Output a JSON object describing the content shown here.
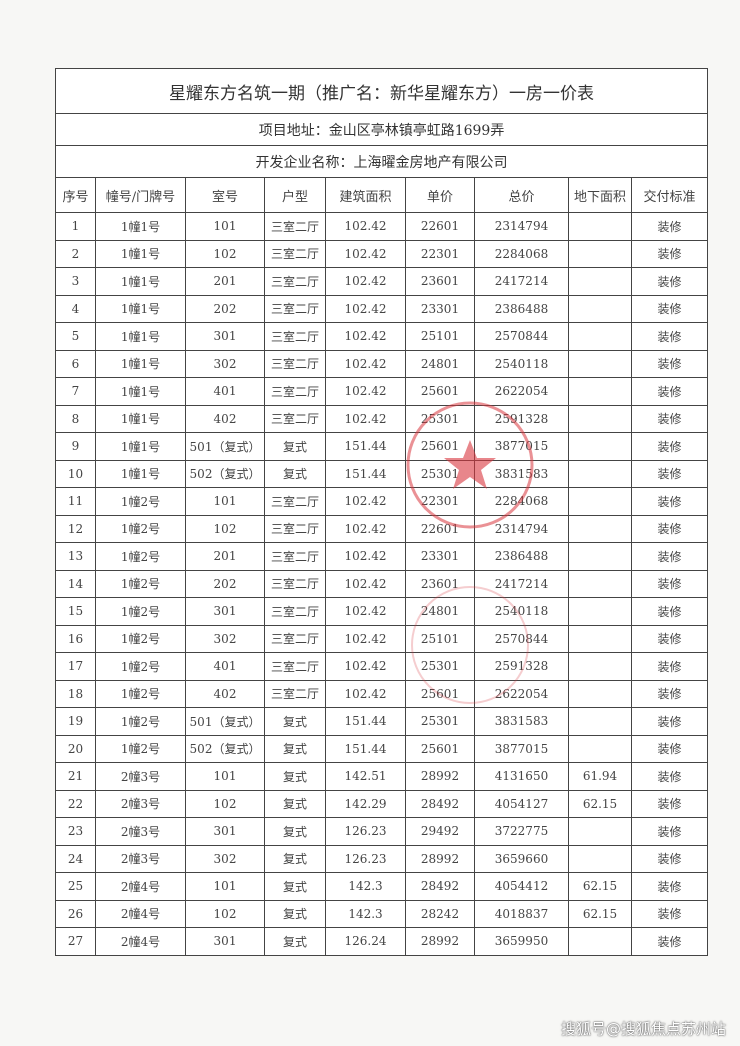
{
  "title": "星耀东方名筑一期（推广名：新华星耀东方）一房一价表",
  "address": "项目地址：金山区亭林镇亭虹路1699弄",
  "developer": "开发企业名称：上海曜金房地产有限公司",
  "columns": [
    "序号",
    "幢号/门牌号",
    "室号",
    "户型",
    "建筑面积",
    "单价",
    "总价",
    "地下面积",
    "交付标准"
  ],
  "rows": [
    [
      "1",
      "1幢1号",
      "101",
      "三室二厅",
      "102.42",
      "22601",
      "2314794",
      "",
      "装修"
    ],
    [
      "2",
      "1幢1号",
      "102",
      "三室二厅",
      "102.42",
      "22301",
      "2284068",
      "",
      "装修"
    ],
    [
      "3",
      "1幢1号",
      "201",
      "三室二厅",
      "102.42",
      "23601",
      "2417214",
      "",
      "装修"
    ],
    [
      "4",
      "1幢1号",
      "202",
      "三室二厅",
      "102.42",
      "23301",
      "2386488",
      "",
      "装修"
    ],
    [
      "5",
      "1幢1号",
      "301",
      "三室二厅",
      "102.42",
      "25101",
      "2570844",
      "",
      "装修"
    ],
    [
      "6",
      "1幢1号",
      "302",
      "三室二厅",
      "102.42",
      "24801",
      "2540118",
      "",
      "装修"
    ],
    [
      "7",
      "1幢1号",
      "401",
      "三室二厅",
      "102.42",
      "25601",
      "2622054",
      "",
      "装修"
    ],
    [
      "8",
      "1幢1号",
      "402",
      "三室二厅",
      "102.42",
      "25301",
      "2591328",
      "",
      "装修"
    ],
    [
      "9",
      "1幢1号",
      "501（复式）",
      "复式",
      "151.44",
      "25601",
      "3877015",
      "",
      "装修"
    ],
    [
      "10",
      "1幢1号",
      "502（复式）",
      "复式",
      "151.44",
      "25301",
      "3831583",
      "",
      "装修"
    ],
    [
      "11",
      "1幢2号",
      "101",
      "三室二厅",
      "102.42",
      "22301",
      "2284068",
      "",
      "装修"
    ],
    [
      "12",
      "1幢2号",
      "102",
      "三室二厅",
      "102.42",
      "22601",
      "2314794",
      "",
      "装修"
    ],
    [
      "13",
      "1幢2号",
      "201",
      "三室二厅",
      "102.42",
      "23301",
      "2386488",
      "",
      "装修"
    ],
    [
      "14",
      "1幢2号",
      "202",
      "三室二厅",
      "102.42",
      "23601",
      "2417214",
      "",
      "装修"
    ],
    [
      "15",
      "1幢2号",
      "301",
      "三室二厅",
      "102.42",
      "24801",
      "2540118",
      "",
      "装修"
    ],
    [
      "16",
      "1幢2号",
      "302",
      "三室二厅",
      "102.42",
      "25101",
      "2570844",
      "",
      "装修"
    ],
    [
      "17",
      "1幢2号",
      "401",
      "三室二厅",
      "102.42",
      "25301",
      "2591328",
      "",
      "装修"
    ],
    [
      "18",
      "1幢2号",
      "402",
      "三室二厅",
      "102.42",
      "25601",
      "2622054",
      "",
      "装修"
    ],
    [
      "19",
      "1幢2号",
      "501（复式）",
      "复式",
      "151.44",
      "25301",
      "3831583",
      "",
      "装修"
    ],
    [
      "20",
      "1幢2号",
      "502（复式）",
      "复式",
      "151.44",
      "25601",
      "3877015",
      "",
      "装修"
    ],
    [
      "21",
      "2幢3号",
      "101",
      "复式",
      "142.51",
      "28992",
      "4131650",
      "61.94",
      "装修"
    ],
    [
      "22",
      "2幢3号",
      "102",
      "复式",
      "142.29",
      "28492",
      "4054127",
      "62.15",
      "装修"
    ],
    [
      "23",
      "2幢3号",
      "301",
      "复式",
      "126.23",
      "29492",
      "3722775",
      "",
      "装修"
    ],
    [
      "24",
      "2幢3号",
      "302",
      "复式",
      "126.23",
      "28992",
      "3659660",
      "",
      "装修"
    ],
    [
      "25",
      "2幢4号",
      "101",
      "复式",
      "142.3",
      "28492",
      "4054412",
      "62.15",
      "装修"
    ],
    [
      "26",
      "2幢4号",
      "102",
      "复式",
      "142.3",
      "28242",
      "4018837",
      "62.15",
      "装修"
    ],
    [
      "27",
      "2幢4号",
      "301",
      "复式",
      "126.24",
      "28992",
      "3659950",
      "",
      "装修"
    ]
  ],
  "seal_text": "上海曜金房地产有限公司",
  "seal_color": "#d9363e",
  "watermark": "搜狐号@搜狐焦点苏州站"
}
